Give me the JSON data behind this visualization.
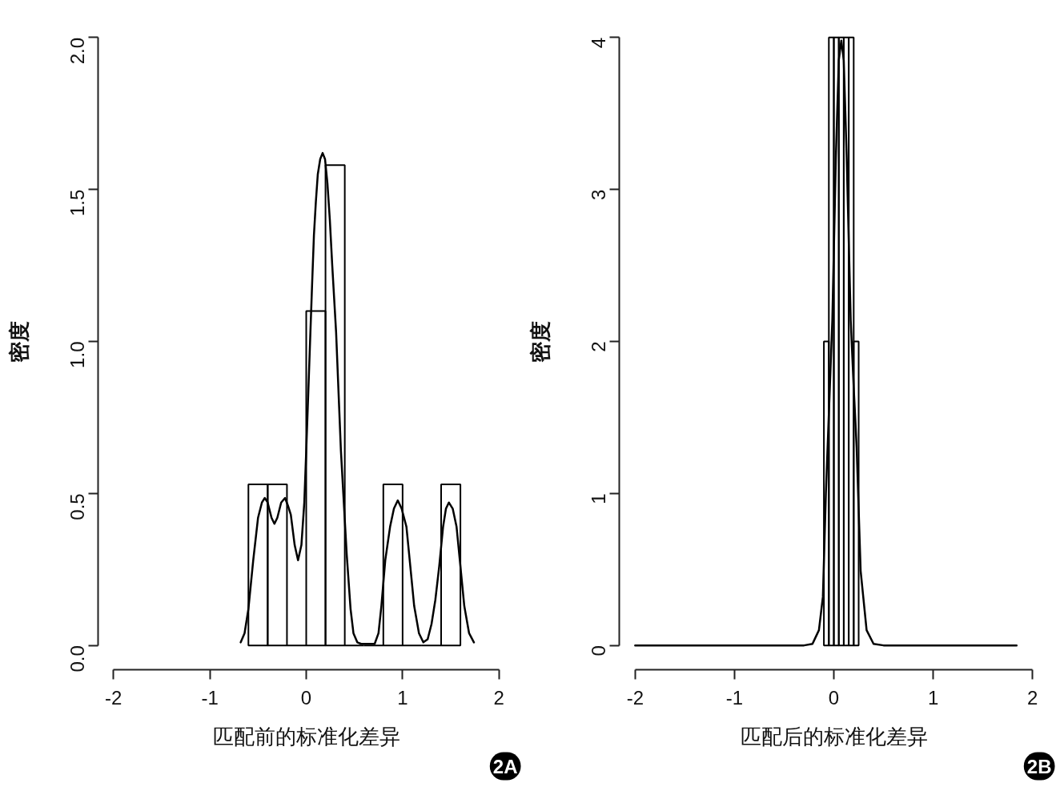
{
  "chart_data": [
    {
      "type": "histogram",
      "xlabel": "匹配前的标准化差异",
      "ylabel": "密度",
      "annotations": [
        "2A"
      ],
      "color": "#000000",
      "bins": [
        -0.6,
        -0.4,
        -0.2,
        0,
        0.2,
        0.4,
        0.6,
        0.8,
        1.0,
        1.2,
        1.4,
        1.6
      ],
      "values": [
        0.53,
        0.53,
        0,
        1.1,
        1.58,
        0,
        0,
        0.53,
        0,
        0,
        0.53
      ],
      "series": [
        {
          "type": "line",
          "color": "#000000",
          "x": [
            -0.68,
            -0.64,
            -0.6,
            -0.55,
            -0.5,
            -0.46,
            -0.43,
            -0.4,
            -0.36,
            -0.33,
            -0.3,
            -0.26,
            -0.22,
            -0.19,
            -0.16,
            -0.12,
            -0.085,
            -0.05,
            -0.02,
            0,
            0.02,
            0.04,
            0.06,
            0.08,
            0.1,
            0.12,
            0.145,
            0.17,
            0.195,
            0.22,
            0.245,
            0.27,
            0.31,
            0.36,
            0.42,
            0.46,
            0.49,
            0.53,
            0.57,
            0.64,
            0.71,
            0.75,
            0.78,
            0.82,
            0.87,
            0.91,
            0.95,
            0.99,
            1.04,
            1.08,
            1.12,
            1.17,
            1.215,
            1.26,
            1.3,
            1.34,
            1.38,
            1.42,
            1.45,
            1.48,
            1.52,
            1.56,
            1.6,
            1.64,
            1.69,
            1.74
          ],
          "values": [
            0.01,
            0.04,
            0.12,
            0.28,
            0.42,
            0.47,
            0.485,
            0.47,
            0.42,
            0.4,
            0.42,
            0.47,
            0.485,
            0.46,
            0.43,
            0.33,
            0.28,
            0.33,
            0.47,
            0.64,
            0.82,
            1.0,
            1.18,
            1.35,
            1.46,
            1.55,
            1.6,
            1.62,
            1.6,
            1.52,
            1.4,
            1.25,
            1.03,
            0.64,
            0.3,
            0.12,
            0.04,
            0.01,
            0.005,
            0.005,
            0.005,
            0.04,
            0.13,
            0.28,
            0.39,
            0.45,
            0.477,
            0.45,
            0.39,
            0.26,
            0.13,
            0.04,
            0.01,
            0.02,
            0.07,
            0.15,
            0.26,
            0.39,
            0.45,
            0.47,
            0.45,
            0.39,
            0.26,
            0.13,
            0.04,
            0.01
          ]
        }
      ],
      "xlim": [
        -2,
        2
      ],
      "ylim": [
        0,
        2
      ],
      "xticks": [
        -2,
        -1,
        0,
        1,
        2
      ],
      "yticks": [
        {
          "value": 0,
          "label": "0.0"
        },
        {
          "value": 0.5,
          "label": "0.5"
        },
        {
          "value": 1,
          "label": "1.0"
        },
        {
          "value": 1.5,
          "label": "1.5"
        },
        {
          "value": 2,
          "label": "2.0"
        }
      ]
    },
    {
      "type": "histogram",
      "xlabel": "匹配后的标准化差异",
      "ylabel": "密度",
      "annotations": [
        "2B"
      ],
      "color": "#000000",
      "bins": [
        -0.1,
        -0.05,
        0,
        0.05,
        0.1,
        0.15,
        0.2,
        0.25
      ],
      "values": [
        2,
        4,
        4,
        4,
        4,
        4,
        2
      ],
      "series": [
        {
          "type": "line",
          "color": "#000000",
          "x": [
            -2,
            -0.3,
            -0.215,
            -0.15,
            -0.11,
            -0.08,
            -0.04,
            -0.015,
            0.02,
            0.05,
            0.075,
            0.1,
            0.13,
            0.17,
            0.2,
            0.23,
            0.27,
            0.33,
            0.4,
            0.5,
            1.84
          ],
          "values": [
            0,
            0,
            0.01,
            0.1,
            0.32,
            1.0,
            1.7,
            2.14,
            3.2,
            3.85,
            3.98,
            3.85,
            3.2,
            2.14,
            1.7,
            1.3,
            0.49,
            0.1,
            0.01,
            0,
            0
          ]
        }
      ],
      "xlim": [
        -2,
        2
      ],
      "ylim": [
        0,
        4
      ],
      "xticks": [
        -2,
        -1,
        0,
        1,
        2
      ],
      "yticks": [
        0,
        1,
        2,
        3,
        4
      ]
    }
  ]
}
